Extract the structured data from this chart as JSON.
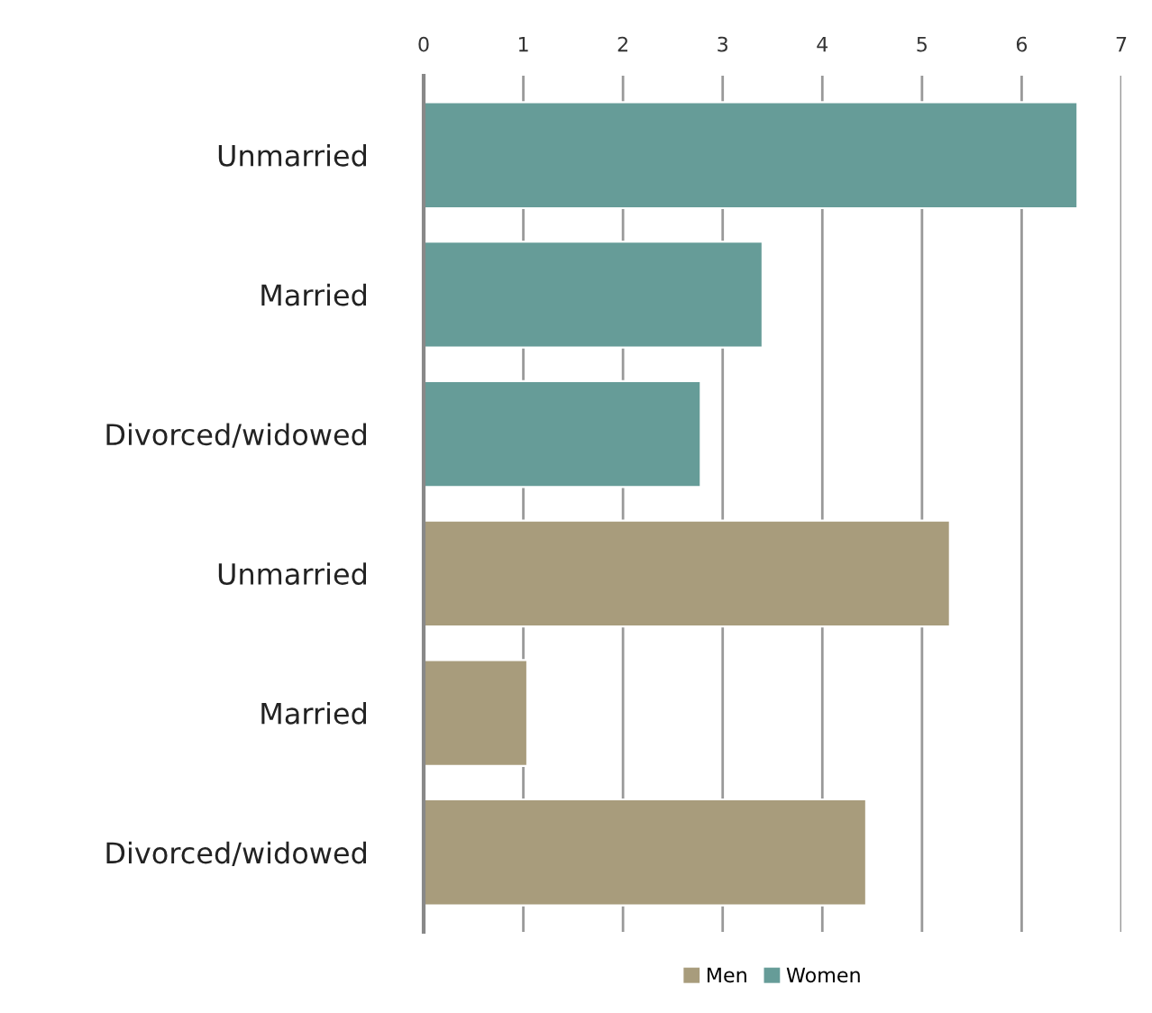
{
  "chart_data": {
    "type": "bar",
    "orientation": "horizontal",
    "categories": [
      "Unmarried",
      "Married",
      "Divorced/widowed",
      "Unmarried",
      "Married",
      "Divorced/widowed"
    ],
    "series": [
      {
        "name": "Men",
        "color": "#a89c7c",
        "values": [
          null,
          null,
          null,
          5.28,
          1.04,
          4.44
        ]
      },
      {
        "name": "Women",
        "color": "#669c98",
        "values": [
          6.56,
          3.4,
          2.78,
          null,
          null,
          null
        ]
      }
    ],
    "xlim": [
      0,
      7
    ],
    "xticks": [
      0,
      1,
      2,
      3,
      4,
      5,
      6,
      7
    ],
    "grid": "x",
    "legend": "bottom"
  }
}
